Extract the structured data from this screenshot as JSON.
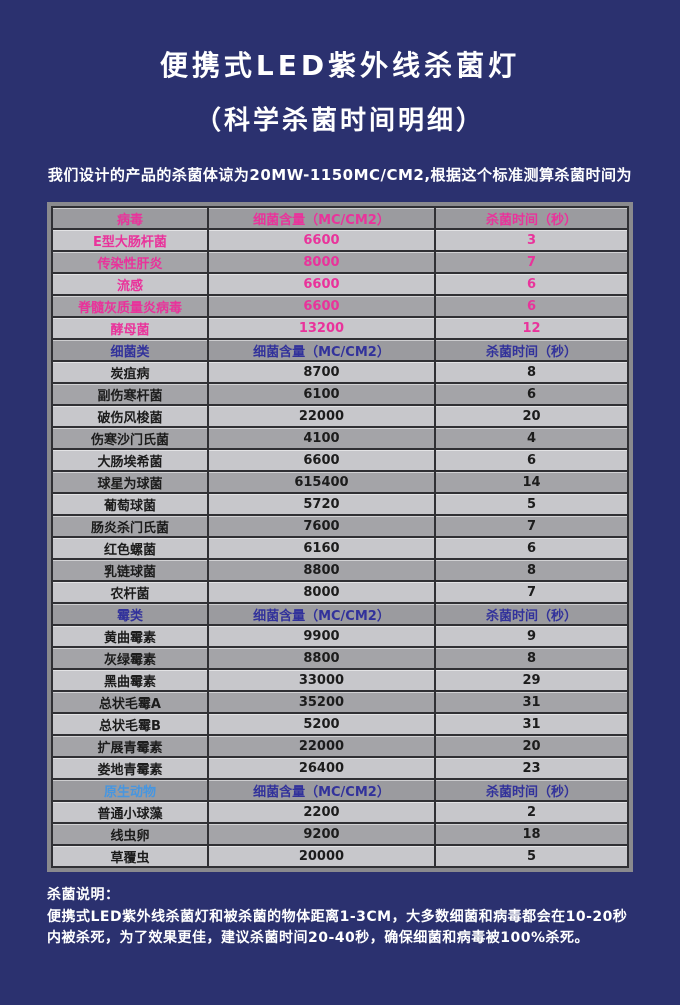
{
  "page": {
    "title": "便携式LED紫外线杀菌灯",
    "subtitle": "（科学杀菌时间明细）",
    "intro": "我们设计的产品的杀菌体谅为20MW-1150MC/CM2,根据这个标准测算杀菌时间为"
  },
  "table": {
    "sections": [
      {
        "name": "病毒",
        "col2": "细菌含量（MC/CM2）",
        "col3": "杀菌时间（秒）",
        "theme": "pink",
        "rows": [
          {
            "name": "E型大肠杆菌",
            "amount": "6600",
            "time": "3"
          },
          {
            "name": "传染性肝炎",
            "amount": "8000",
            "time": "7"
          },
          {
            "name": "流感",
            "amount": "6600",
            "time": "6"
          },
          {
            "name": "脊髓灰质量炎病毒",
            "amount": "6600",
            "time": "6"
          },
          {
            "name": "酵母菌",
            "amount": "13200",
            "time": "12"
          }
        ]
      },
      {
        "name": "细菌类",
        "col2": "细菌含量（MC/CM2）",
        "col3": "杀菌时间（秒）",
        "theme": "blue",
        "rows": [
          {
            "name": "炭疽病",
            "amount": "8700",
            "time": "8"
          },
          {
            "name": "副伤寒杆菌",
            "amount": "6100",
            "time": "6"
          },
          {
            "name": "破伤风梭菌",
            "amount": "22000",
            "time": "20"
          },
          {
            "name": "伤寒沙门氏菌",
            "amount": "4100",
            "time": "4"
          },
          {
            "name": "大肠埃希菌",
            "amount": "6600",
            "time": "6"
          },
          {
            "name": "球星为球菌",
            "amount": "615400",
            "time": "14"
          },
          {
            "name": "葡萄球菌",
            "amount": "5720",
            "time": "5"
          },
          {
            "name": "肠炎杀门氏菌",
            "amount": "7600",
            "time": "7"
          },
          {
            "name": "红色螺菌",
            "amount": "6160",
            "time": "6"
          },
          {
            "name": "乳链球菌",
            "amount": "8800",
            "time": "8"
          },
          {
            "name": "农杆菌",
            "amount": "8000",
            "time": "7"
          }
        ]
      },
      {
        "name": "霉类",
        "col2": "细菌含量（MC/CM2）",
        "col3": "杀菌时间（秒）",
        "theme": "blue",
        "rows": [
          {
            "name": "黄曲霉素",
            "amount": "9900",
            "time": "9"
          },
          {
            "name": "灰绿霉素",
            "amount": "8800",
            "time": "8"
          },
          {
            "name": "黑曲霉素",
            "amount": "33000",
            "time": "29"
          },
          {
            "name": "总状毛霉A",
            "amount": "35200",
            "time": "31"
          },
          {
            "name": "总状毛霉B",
            "amount": "5200",
            "time": "31"
          },
          {
            "name": "扩展青霉素",
            "amount": "22000",
            "time": "20"
          },
          {
            "name": "娄地青霉素",
            "amount": "26400",
            "time": "23"
          }
        ]
      },
      {
        "name": "原生动物",
        "col2": "细菌含量（MC/CM2）",
        "col3": "杀菌时间（秒）",
        "theme": "protozoa",
        "rows": [
          {
            "name": "普通小球藻",
            "amount": "2200",
            "time": "2"
          },
          {
            "name": "线虫卵",
            "amount": "9200",
            "time": "18"
          },
          {
            "name": "草覆虫",
            "amount": "20000",
            "time": "5"
          }
        ]
      }
    ]
  },
  "footer": {
    "label": "杀菌说明：",
    "text": "便携式LED紫外线杀菌灯和被杀菌的物体距离1-3CM，大多数细菌和病毒都会在10-20秒内被杀死，为了效果更佳，建议杀菌时间20-40秒，确保细菌和病毒被100%杀死。"
  },
  "colors": {
    "background": "#2b316f",
    "title_text": "#ffffff",
    "virus_pink": "#e9339b",
    "header_blue": "#32329b",
    "protozoa_light_blue": "#4796e0",
    "body_text": "#1c1c1c",
    "header_row_bg": "#9b9b9f",
    "row_light_bg": "#c7c7cb",
    "row_dark_bg": "#a4a4a8",
    "table_frame": "#8a8a8e",
    "cell_gap": "#303034"
  }
}
